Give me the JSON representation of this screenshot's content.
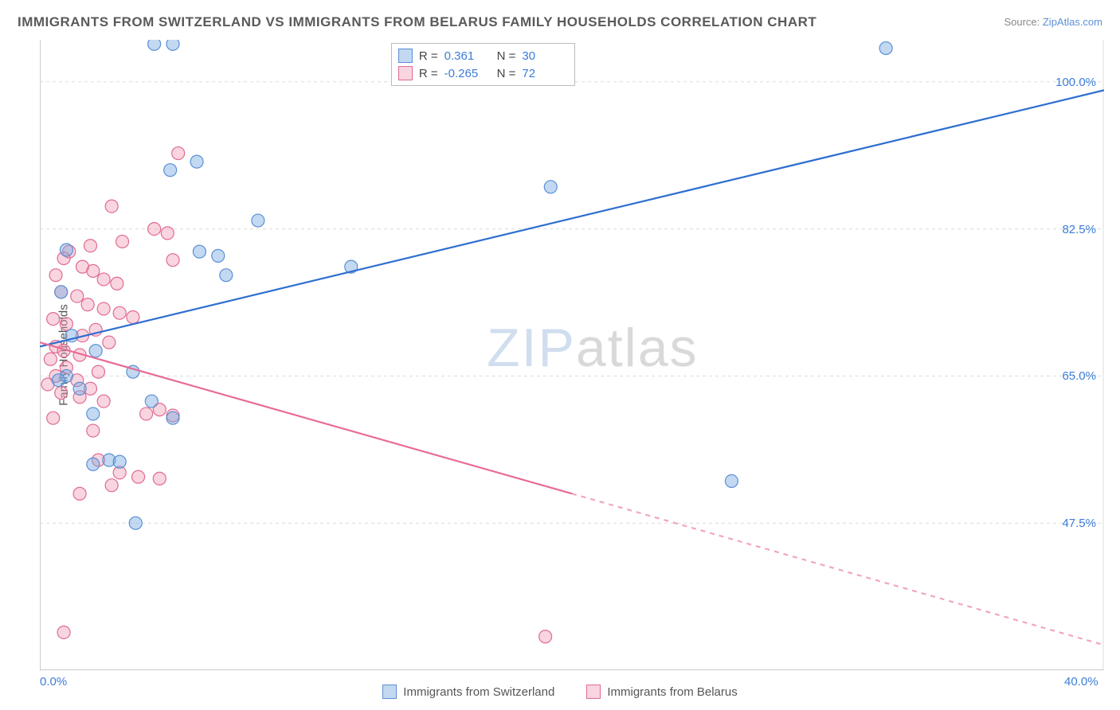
{
  "title": "IMMIGRANTS FROM SWITZERLAND VS IMMIGRANTS FROM BELARUS FAMILY HOUSEHOLDS CORRELATION CHART",
  "source_prefix": "Source: ",
  "source_link": "ZipAtlas.com",
  "y_axis_label": "Family Households",
  "watermark_zip": "ZIP",
  "watermark_atlas": "atlas",
  "chart": {
    "type": "scatter",
    "background_color": "#ffffff",
    "grid_color": "#dcdcdc",
    "frame_color": "#999999",
    "xlim": [
      0,
      40
    ],
    "ylim": [
      30,
      105
    ],
    "x_ticks": [
      {
        "v": 0,
        "label": "0.0%"
      },
      {
        "v": 40,
        "label": "40.0%"
      }
    ],
    "y_ticks": [
      {
        "v": 47.5,
        "label": "47.5%"
      },
      {
        "v": 65.0,
        "label": "65.0%"
      },
      {
        "v": 82.5,
        "label": "82.5%"
      },
      {
        "v": 100.0,
        "label": "100.0%"
      }
    ],
    "marker_radius": 8,
    "line_width": 2.2,
    "series": [
      {
        "name": "Immigrants from Switzerland",
        "color_fill": "rgba(120,170,225,0.45)",
        "color_stroke": "#5b8fd6",
        "reg_color": "#2e6fd0",
        "R": "0.361",
        "N": "30",
        "reg_line": {
          "x1": 0,
          "y1": 68.5,
          "x2": 40,
          "y2": 99.0,
          "dash_from_x": 40
        },
        "points": [
          [
            4.3,
            104.5
          ],
          [
            5.0,
            104.5
          ],
          [
            31.8,
            104.0
          ],
          [
            5.9,
            90.5
          ],
          [
            4.9,
            89.5
          ],
          [
            19.2,
            87.5
          ],
          [
            8.2,
            83.5
          ],
          [
            1.0,
            80.0
          ],
          [
            6.0,
            79.8
          ],
          [
            6.7,
            79.3
          ],
          [
            11.7,
            78.0
          ],
          [
            7.0,
            77.0
          ],
          [
            0.8,
            75.0
          ],
          [
            1.2,
            69.8
          ],
          [
            2.1,
            68.0
          ],
          [
            3.5,
            65.5
          ],
          [
            1.0,
            65.0
          ],
          [
            0.7,
            64.5
          ],
          [
            1.5,
            63.5
          ],
          [
            4.2,
            62.0
          ],
          [
            2.0,
            60.5
          ],
          [
            5.0,
            60.0
          ],
          [
            2.6,
            55.0
          ],
          [
            3.0,
            54.8
          ],
          [
            2.0,
            54.5
          ],
          [
            26.0,
            52.5
          ],
          [
            3.6,
            47.5
          ]
        ]
      },
      {
        "name": "Immigrants from Belarus",
        "color_fill": "rgba(240,150,175,0.40)",
        "color_stroke": "#e06b93",
        "reg_color": "#e86b95",
        "R": "-0.265",
        "N": "72",
        "reg_line": {
          "x1": 0,
          "y1": 69.0,
          "x2": 40,
          "y2": 33.0,
          "dash_from_x": 20
        },
        "points": [
          [
            5.2,
            91.5
          ],
          [
            2.7,
            85.2
          ],
          [
            4.3,
            82.5
          ],
          [
            4.8,
            82.0
          ],
          [
            3.1,
            81.0
          ],
          [
            1.9,
            80.5
          ],
          [
            1.1,
            79.8
          ],
          [
            0.9,
            79.0
          ],
          [
            5.0,
            78.8
          ],
          [
            1.6,
            78.0
          ],
          [
            2.0,
            77.5
          ],
          [
            0.6,
            77.0
          ],
          [
            2.4,
            76.5
          ],
          [
            2.9,
            76.0
          ],
          [
            0.8,
            75.0
          ],
          [
            1.4,
            74.5
          ],
          [
            1.8,
            73.5
          ],
          [
            2.4,
            73.0
          ],
          [
            3.0,
            72.5
          ],
          [
            3.5,
            72.0
          ],
          [
            0.5,
            71.8
          ],
          [
            1.0,
            71.2
          ],
          [
            2.1,
            70.5
          ],
          [
            1.6,
            69.8
          ],
          [
            2.6,
            69.0
          ],
          [
            0.6,
            68.5
          ],
          [
            0.9,
            68.0
          ],
          [
            1.5,
            67.5
          ],
          [
            0.4,
            67.0
          ],
          [
            1.0,
            66.0
          ],
          [
            2.2,
            65.5
          ],
          [
            0.6,
            65.0
          ],
          [
            1.4,
            64.5
          ],
          [
            0.3,
            64.0
          ],
          [
            1.9,
            63.5
          ],
          [
            0.8,
            63.0
          ],
          [
            1.5,
            62.5
          ],
          [
            2.4,
            62.0
          ],
          [
            4.5,
            61.0
          ],
          [
            4.0,
            60.5
          ],
          [
            5.0,
            60.3
          ],
          [
            0.5,
            60.0
          ],
          [
            2.0,
            58.5
          ],
          [
            2.2,
            55.0
          ],
          [
            3.0,
            53.5
          ],
          [
            3.7,
            53.0
          ],
          [
            4.5,
            52.8
          ],
          [
            2.7,
            52.0
          ],
          [
            1.5,
            51.0
          ],
          [
            0.9,
            34.5
          ],
          [
            19.0,
            34.0
          ]
        ]
      }
    ],
    "stats_legend": {
      "labels": {
        "R": "R =",
        "N": "N ="
      }
    },
    "bottom_legend": true
  }
}
